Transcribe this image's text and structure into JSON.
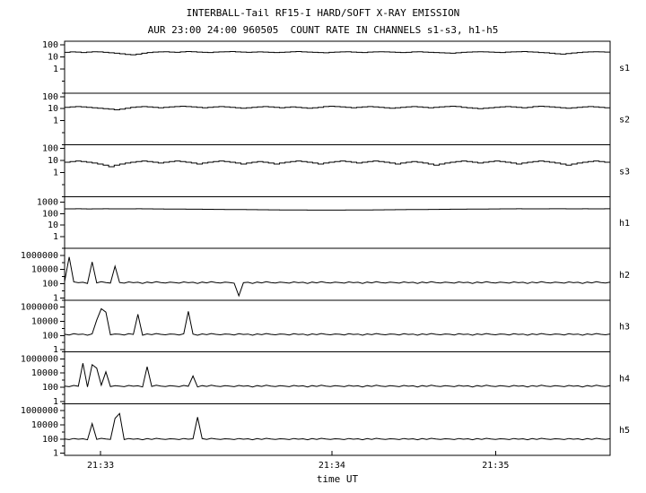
{
  "chart_data": {
    "type": "line",
    "title": "INTERBALL-Tail RF15-I HARD/SOFT X-RAY EMISSION",
    "subtitle": "AUR 23:00 24:00 960505  COUNT RATE IN CHANNELS s1-s3, h1-h5",
    "xlabel": "time UT",
    "background": "#ffffff",
    "line_color": "#000000",
    "x_ticks": [
      {
        "label": "21:33",
        "f": 0.066
      },
      {
        "label": "21:34",
        "f": 0.49
      },
      {
        "label": "21:35",
        "f": 0.79
      }
    ],
    "panels": [
      {
        "name": "s1",
        "label": "s1",
        "style": "step",
        "ylim": [
          0.01,
          200
        ],
        "yticks": [
          1,
          10,
          100
        ],
        "values": [
          24,
          26,
          25,
          23,
          25,
          27,
          26,
          24,
          22,
          20,
          18,
          16,
          15,
          17,
          20,
          23,
          25,
          26,
          27,
          25,
          24,
          26,
          28,
          27,
          25,
          24,
          23,
          25,
          26,
          27,
          28,
          26,
          25,
          24,
          25,
          26,
          25,
          24,
          23,
          24,
          25,
          27,
          28,
          26,
          25,
          24,
          23,
          22,
          24,
          25,
          26,
          27,
          25,
          24,
          23,
          25,
          26,
          27,
          26,
          25,
          24,
          23,
          24,
          26,
          27,
          25,
          24,
          23,
          22,
          21,
          20,
          22,
          24,
          25,
          26,
          27,
          26,
          25,
          24,
          23,
          25,
          26,
          27,
          28,
          26,
          25,
          23,
          22,
          20,
          18,
          17,
          19,
          21,
          23,
          25,
          26,
          27,
          26,
          25,
          24
        ]
      },
      {
        "name": "s2",
        "label": "s2",
        "style": "step",
        "ylim": [
          0.01,
          200
        ],
        "yticks": [
          1,
          10,
          100
        ],
        "values": [
          13,
          14,
          15,
          14,
          13,
          12,
          11,
          10,
          9,
          8,
          9,
          11,
          13,
          14,
          15,
          14,
          13,
          12,
          13,
          14,
          15,
          16,
          15,
          14,
          13,
          12,
          13,
          14,
          15,
          14,
          13,
          12,
          11,
          12,
          13,
          14,
          15,
          14,
          13,
          12,
          13,
          14,
          13,
          12,
          11,
          12,
          13,
          15,
          16,
          15,
          14,
          13,
          12,
          13,
          14,
          15,
          14,
          13,
          12,
          11,
          12,
          13,
          14,
          15,
          14,
          13,
          12,
          13,
          14,
          15,
          16,
          15,
          13,
          12,
          11,
          10,
          11,
          12,
          13,
          14,
          15,
          14,
          13,
          12,
          13,
          15,
          16,
          15,
          14,
          13,
          12,
          11,
          12,
          13,
          14,
          15,
          14,
          13,
          12,
          13
        ]
      },
      {
        "name": "s3",
        "label": "s3",
        "style": "step",
        "ylim": [
          0.01,
          200
        ],
        "yticks": [
          1,
          10,
          100
        ],
        "values": [
          7,
          8,
          9,
          8,
          7,
          6,
          5,
          4,
          3,
          4,
          5,
          6,
          7,
          8,
          9,
          8,
          7,
          6,
          7,
          8,
          9,
          8,
          7,
          6,
          5,
          6,
          7,
          8,
          9,
          8,
          7,
          6,
          5,
          6,
          7,
          8,
          7,
          6,
          5,
          6,
          7,
          8,
          9,
          8,
          7,
          6,
          5,
          6,
          7,
          8,
          9,
          8,
          7,
          6,
          7,
          8,
          9,
          8,
          7,
          6,
          5,
          6,
          7,
          8,
          7,
          6,
          5,
          4,
          5,
          6,
          7,
          8,
          9,
          8,
          7,
          6,
          7,
          8,
          9,
          8,
          7,
          6,
          5,
          6,
          7,
          8,
          9,
          8,
          7,
          6,
          5,
          4,
          5,
          6,
          7,
          8,
          9,
          8,
          7,
          6
        ]
      },
      {
        "name": "h1",
        "label": "h1",
        "style": "step",
        "ylim": [
          0.1,
          3000
        ],
        "yticks": [
          1,
          10,
          100,
          1000
        ],
        "values": [
          260,
          258,
          262,
          260,
          255,
          258,
          260,
          262,
          260,
          258,
          256,
          258,
          260,
          262,
          260,
          258,
          255,
          252,
          250,
          248,
          246,
          244,
          242,
          240,
          238,
          236,
          234,
          232,
          230,
          228,
          226,
          224,
          222,
          220,
          218,
          216,
          214,
          212,
          210,
          208,
          206,
          205,
          204,
          203,
          202,
          201,
          200,
          200,
          200,
          201,
          202,
          203,
          204,
          205,
          206,
          208,
          210,
          212,
          214,
          216,
          218,
          220,
          222,
          224,
          226,
          228,
          230,
          232,
          234,
          236,
          238,
          240,
          242,
          244,
          246,
          248,
          250,
          252,
          254,
          256,
          258,
          260,
          262,
          260,
          258,
          256,
          258,
          260,
          262,
          264,
          262,
          260,
          258,
          260,
          262,
          260,
          258,
          260,
          262,
          260
        ]
      },
      {
        "name": "h2",
        "label": "h2",
        "style": "line",
        "ylim": [
          0.5,
          10000000
        ],
        "yticks": [
          1,
          100,
          10000,
          1000000
        ],
        "values": [
          200,
          600000,
          180,
          140,
          160,
          110,
          120000,
          130,
          190,
          145,
          125,
          30000,
          150,
          120,
          180,
          140,
          160,
          110,
          170,
          130,
          190,
          145,
          125,
          165,
          150,
          120,
          180,
          140,
          160,
          110,
          170,
          130,
          190,
          145,
          125,
          165,
          150,
          120,
          2,
          140,
          160,
          110,
          170,
          130,
          190,
          145,
          125,
          165,
          150,
          120,
          180,
          140,
          160,
          110,
          170,
          130,
          190,
          145,
          125,
          165,
          150,
          120,
          180,
          140,
          160,
          110,
          170,
          130,
          190,
          145,
          125,
          165,
          150,
          120,
          180,
          140,
          160,
          110,
          170,
          130,
          190,
          145,
          125,
          165,
          150,
          120,
          180,
          140,
          160,
          110,
          170,
          130,
          190,
          145,
          125,
          165,
          150,
          120,
          180,
          140,
          160,
          110,
          170,
          130,
          190,
          145,
          125,
          165,
          150,
          120,
          180,
          140,
          160,
          110,
          170,
          130,
          190,
          145,
          125,
          165
        ]
      },
      {
        "name": "h3",
        "label": "h3",
        "style": "line",
        "ylim": [
          0.5,
          10000000
        ],
        "yticks": [
          1,
          100,
          10000,
          1000000
        ],
        "values": [
          150,
          120,
          180,
          140,
          160,
          110,
          170,
          15000,
          600000,
          200000,
          125,
          165,
          150,
          120,
          180,
          140,
          100000,
          110,
          170,
          130,
          190,
          145,
          125,
          165,
          150,
          120,
          180,
          250000,
          160,
          110,
          170,
          130,
          190,
          145,
          125,
          165,
          150,
          120,
          180,
          140,
          160,
          110,
          170,
          130,
          190,
          145,
          125,
          165,
          150,
          120,
          180,
          140,
          160,
          110,
          170,
          130,
          190,
          145,
          125,
          165,
          150,
          120,
          180,
          140,
          160,
          110,
          170,
          130,
          190,
          145,
          125,
          165,
          150,
          120,
          180,
          140,
          160,
          110,
          170,
          130,
          190,
          145,
          125,
          165,
          150,
          120,
          180,
          140,
          160,
          110,
          170,
          130,
          190,
          145,
          125,
          165,
          150,
          120,
          180,
          140,
          160,
          110,
          170,
          130,
          190,
          145,
          125,
          165,
          150,
          120,
          180,
          140,
          160,
          110,
          170,
          130,
          190,
          145,
          125,
          165
        ]
      },
      {
        "name": "h4",
        "label": "h4",
        "style": "line",
        "ylim": [
          0.5,
          10000000
        ],
        "yticks": [
          1,
          100,
          10000,
          1000000
        ],
        "values": [
          150,
          120,
          180,
          140,
          250000,
          110,
          150000,
          50000,
          190,
          15000,
          125,
          165,
          150,
          120,
          180,
          140,
          160,
          110,
          80000,
          130,
          190,
          145,
          125,
          165,
          150,
          120,
          180,
          140,
          4000,
          110,
          170,
          130,
          190,
          145,
          125,
          165,
          150,
          120,
          180,
          140,
          160,
          110,
          170,
          130,
          190,
          145,
          125,
          165,
          150,
          120,
          180,
          140,
          160,
          110,
          170,
          130,
          190,
          145,
          125,
          165,
          150,
          120,
          180,
          140,
          160,
          110,
          170,
          130,
          190,
          145,
          125,
          165,
          150,
          120,
          180,
          140,
          160,
          110,
          170,
          130,
          190,
          145,
          125,
          165,
          150,
          120,
          180,
          140,
          160,
          110,
          170,
          130,
          190,
          145,
          125,
          165,
          150,
          120,
          180,
          140,
          160,
          110,
          170,
          130,
          190,
          145,
          125,
          165,
          150,
          120,
          180,
          140,
          160,
          110,
          170,
          130,
          190,
          145,
          125,
          165
        ]
      },
      {
        "name": "h5",
        "label": "h5",
        "style": "line",
        "ylim": [
          0.5,
          10000000
        ],
        "yticks": [
          1,
          100,
          10000,
          1000000
        ],
        "values": [
          100,
          85,
          120,
          95,
          110,
          80,
          15000,
          90,
          125,
          100,
          88,
          80000,
          400000,
          85,
          120,
          95,
          110,
          80,
          115,
          90,
          125,
          100,
          88,
          108,
          100,
          85,
          120,
          95,
          110,
          120000,
          115,
          90,
          125,
          100,
          88,
          108,
          100,
          85,
          120,
          95,
          110,
          80,
          115,
          90,
          125,
          100,
          88,
          108,
          100,
          85,
          120,
          95,
          110,
          80,
          115,
          90,
          125,
          100,
          88,
          108,
          100,
          85,
          120,
          95,
          110,
          80,
          115,
          90,
          125,
          100,
          88,
          108,
          100,
          85,
          120,
          95,
          110,
          80,
          115,
          90,
          125,
          100,
          88,
          108,
          100,
          85,
          120,
          95,
          110,
          80,
          115,
          90,
          125,
          100,
          88,
          108,
          100,
          85,
          120,
          95,
          110,
          80,
          115,
          90,
          125,
          100,
          88,
          108,
          100,
          85,
          120,
          95,
          110,
          80,
          115,
          90,
          125,
          100,
          88,
          108
        ]
      }
    ]
  }
}
